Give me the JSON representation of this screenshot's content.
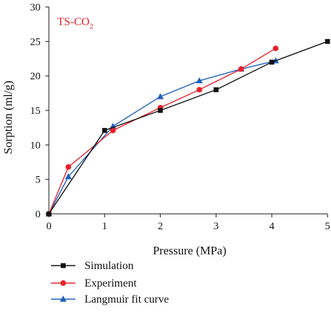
{
  "chart_data": {
    "type": "line",
    "title": "",
    "annotation": {
      "main": "TS-CO",
      "sub": "2"
    },
    "xlabel": "Pressure (MPa)",
    "ylabel": "Sorption (ml/g)",
    "xlim": [
      0,
      5
    ],
    "ylim": [
      0,
      30
    ],
    "xticks": [
      "0",
      "1",
      "2",
      "3",
      "4",
      "5"
    ],
    "yticks": [
      "0",
      "5",
      "10",
      "15",
      "20",
      "25",
      "30"
    ],
    "grid": false,
    "legend_position": "bottom-left, below plot",
    "series": [
      {
        "name": "Simulation",
        "color": "#111111",
        "marker": "square",
        "x": [
          0,
          1.0,
          2.0,
          3.0,
          4.0,
          5.0
        ],
        "y": [
          0,
          12.1,
          15.0,
          18.0,
          22.0,
          25.0
        ]
      },
      {
        "name": "Experiment",
        "color": "#e8202a",
        "marker": "circle",
        "x": [
          0,
          0.35,
          1.15,
          2.0,
          2.7,
          3.45,
          4.07
        ],
        "y": [
          0,
          6.8,
          12.1,
          15.4,
          18.0,
          21.0,
          24.0
        ]
      },
      {
        "name": "Langmuir fit curve",
        "color": "#1f5fbf",
        "marker": "triangle",
        "x": [
          0,
          0.35,
          1.15,
          2.0,
          2.7,
          3.45,
          4.07
        ],
        "y": [
          0,
          5.4,
          12.7,
          17.0,
          19.3,
          21.0,
          22.2
        ]
      }
    ]
  }
}
